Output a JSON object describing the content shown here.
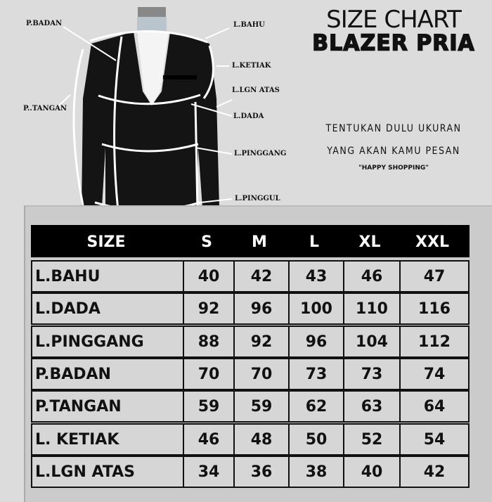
{
  "diagram_labels": {
    "p_badan": "P.BADAN",
    "l_bahu": "L.BAHU",
    "l_ketiak": "L.KETIAK",
    "l_lgn_atas": "L.LGN ATAS",
    "p_tangan": "P..TANGAN",
    "l_dada": "L.DADA",
    "l_pinggang": "L.PINGGANG",
    "l_pinggul": "L.PINGGUL"
  },
  "title": {
    "line1": "SIZE CHART",
    "line2": "BLAZER PRIA"
  },
  "tagline": {
    "line1": "TENTUKAN DULU UKURAN",
    "line2": "YANG AKAN KAMU PESAN",
    "line3": "\"HAPPY SHOPPING\""
  },
  "table": {
    "headers": [
      "SIZE",
      "S",
      "M",
      "L",
      "XL",
      "XXL"
    ],
    "rows": [
      [
        "L.BAHU",
        "40",
        "42",
        "43",
        "46",
        "47"
      ],
      [
        "L.DADA",
        "92",
        "96",
        "100",
        "110",
        "116"
      ],
      [
        "L.PINGGANG",
        "88",
        "92",
        "96",
        "104",
        "112"
      ],
      [
        "P.BADAN",
        "70",
        "70",
        "73",
        "73",
        "74"
      ],
      [
        "P.TANGAN",
        "59",
        "59",
        "62",
        "63",
        "64"
      ],
      [
        "L. KETIAK",
        "46",
        "48",
        "50",
        "52",
        "54"
      ],
      [
        "L.LGN ATAS",
        "34",
        "36",
        "38",
        "40",
        "42"
      ]
    ]
  }
}
